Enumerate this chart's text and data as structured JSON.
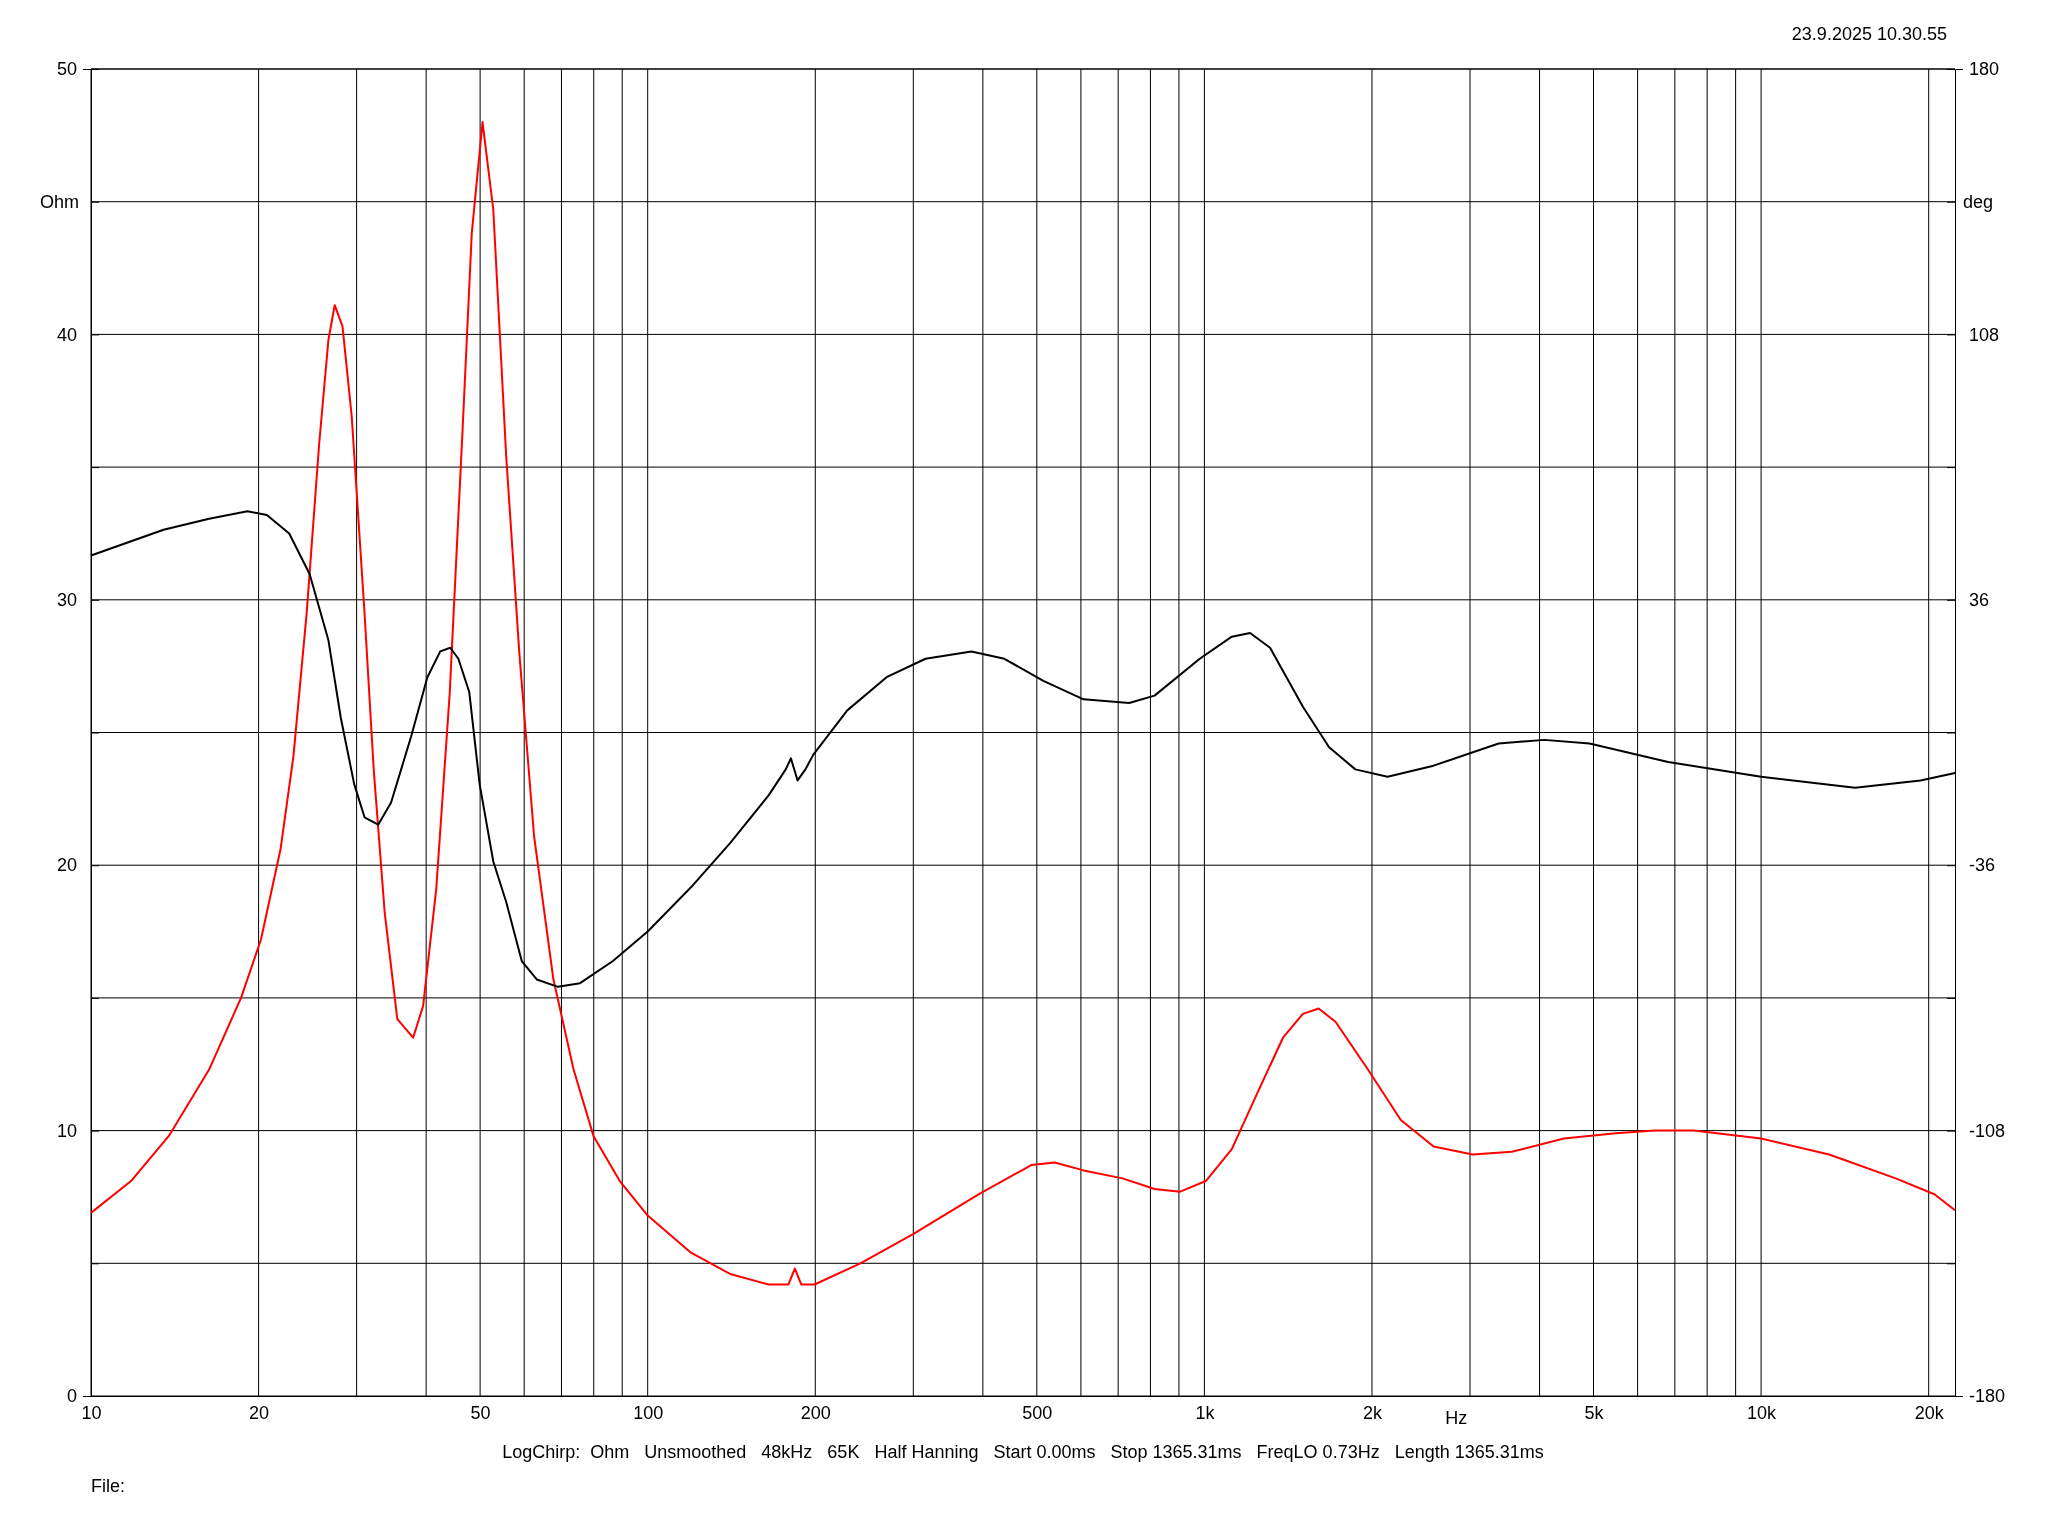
{
  "chart_data": {
    "type": "line",
    "xlabel": "Hz",
    "ylabel": "Ohm",
    "y2label": "deg",
    "log": "x",
    "grid": true,
    "line_style": "solid",
    "marker": "none",
    "annotations": [
      "23.9.2025 10.30.55",
      "LogChirp:  Ohm   Unsmoothed   48kHz   65K   Half Hanning   Start 0.00ms   Stop 1365.31ms   FreqLO 0.73Hz   Length 1365.31ms",
      "File:"
    ],
    "xlim": [
      10,
      22300
    ],
    "xticks": [
      10,
      20,
      {
        "value": 30,
        "label": null
      },
      {
        "value": 40,
        "label": null
      },
      50,
      {
        "value": 60,
        "label": null
      },
      {
        "value": 70,
        "label": null
      },
      {
        "value": 80,
        "label": null
      },
      {
        "value": 90,
        "label": null
      },
      100,
      200,
      {
        "value": 300,
        "label": null
      },
      {
        "value": 400,
        "label": null
      },
      500,
      {
        "value": 600,
        "label": null
      },
      {
        "value": 700,
        "label": null
      },
      {
        "value": 800,
        "label": null
      },
      {
        "value": 900,
        "label": null
      },
      {
        "value": 1000,
        "label": "1k"
      },
      {
        "value": 2000,
        "label": "2k"
      },
      {
        "value": 3000,
        "label": null
      },
      {
        "value": 4000,
        "label": null
      },
      {
        "value": 5000,
        "label": "5k"
      },
      {
        "value": 6000,
        "label": null
      },
      {
        "value": 7000,
        "label": null
      },
      {
        "value": 8000,
        "label": null
      },
      {
        "value": 9000,
        "label": null
      },
      {
        "value": 10000,
        "label": "10k"
      },
      {
        "value": 20000,
        "label": "20k"
      }
    ],
    "ylim": [
      0,
      50
    ],
    "yticks": [
      0,
      {
        "value": 5,
        "label": null
      },
      10,
      {
        "value": 15,
        "label": null
      },
      20,
      {
        "value": 25,
        "label": null
      },
      30,
      {
        "value": 35,
        "label": null
      },
      40,
      {
        "value": 45,
        "label": null
      },
      50
    ],
    "y2lim": [
      -180,
      180
    ],
    "y2ticks": [
      -180,
      {
        "value": -144,
        "label": null
      },
      -108,
      {
        "value": -72,
        "label": null
      },
      -36,
      {
        "value": 0,
        "label": null
      },
      36,
      {
        "value": 72,
        "label": null
      },
      108,
      {
        "value": 144,
        "label": null
      },
      180
    ],
    "series": [
      {
        "color": "#ff0000",
        "x": [
          10,
          11.8,
          13.8,
          16.3,
          18.6,
          20.2,
          21.9,
          23.1,
          24.4,
          25.7,
          26.7,
          27.4,
          28.3,
          29.4,
          31,
          32.2,
          33.7,
          35.5,
          37.9,
          39.5,
          41.7,
          44.1,
          46.5,
          48.3,
          50.5,
          52.8,
          55.7,
          58.8,
          62.5,
          67.7,
          73.6,
          79.9,
          89.1,
          100,
          119.6,
          140.6,
          165,
          178.9,
          183.8,
          188.8,
          199.4,
          241,
          299.7,
          392.9,
          488.7,
          538.5,
          606.6,
          712.6,
          813.7,
          904.7,
          1006,
          1120,
          1244,
          1384,
          1503,
          1604,
          1720,
          1967,
          2253,
          2580,
          3034,
          3566,
          4423,
          5484,
          6444,
          7571,
          10000,
          13250,
          17450,
          20480,
          22300
        ],
        "values": [
          6.9,
          8.1,
          9.8,
          12.3,
          15,
          17.2,
          20.6,
          24.1,
          29.5,
          35.9,
          39.8,
          41.1,
          40.3,
          36.9,
          29.5,
          23.6,
          18.2,
          14.2,
          13.5,
          14.7,
          19.1,
          26.5,
          36.4,
          43.8,
          48,
          44.7,
          35.4,
          28,
          21.1,
          15.7,
          12.3,
          9.8,
          8.1,
          6.8,
          5.4,
          4.6,
          4.2,
          4.2,
          4.8,
          4.2,
          4.2,
          5,
          6.1,
          7.6,
          8.7,
          8.8,
          8.5,
          8.2,
          7.8,
          7.7,
          8.1,
          9.3,
          11.4,
          13.5,
          14.4,
          14.6,
          14.1,
          12.3,
          10.4,
          9.4,
          9.1,
          9.2,
          9.7,
          9.9,
          10,
          10,
          9.7,
          9.1,
          8.2,
          7.6,
          7
        ]
      },
      {
        "color": "#000000",
        "axis": "y2",
        "x": [
          10,
          13.5,
          16.3,
          19.1,
          20.7,
          22.7,
          24.7,
          26.7,
          28.1,
          29.7,
          31,
          32.8,
          34.6,
          37.6,
          40.2,
          42.4,
          44.2,
          45.7,
          47.8,
          49.9,
          52.8,
          55.7,
          59.4,
          63.2,
          69,
          75.6,
          86.6,
          100,
          119.6,
          140.6,
          165,
          177,
          180.8,
          185.9,
          192,
          198.4,
          228.3,
          268.6,
          315.5,
          381.5,
          437.2,
          513.7,
          606.6,
          732.7,
          813.7,
          981,
          1120,
          1208,
          1312,
          1503,
          1675,
          1867,
          2133,
          2580,
          3377,
          4079,
          4918,
          6808,
          10000,
          14750,
          19340,
          22300
        ],
        "values": [
          48,
          55,
          58,
          60,
          59,
          54,
          43,
          25,
          4,
          -14,
          -23,
          -25,
          -19,
          -1,
          15,
          22,
          23,
          20,
          11,
          -14,
          -35,
          -46,
          -62,
          -67,
          -69,
          -68,
          -62,
          -54,
          -42,
          -30,
          -17,
          -10,
          -7,
          -13,
          -10,
          -6,
          6,
          15,
          20,
          22,
          20,
          14,
          9,
          8,
          10,
          20,
          26,
          27,
          23,
          7,
          -4,
          -10,
          -12,
          -9,
          -3,
          -2,
          -3,
          -8,
          -12,
          -15,
          -13,
          -11
        ]
      }
    ]
  }
}
